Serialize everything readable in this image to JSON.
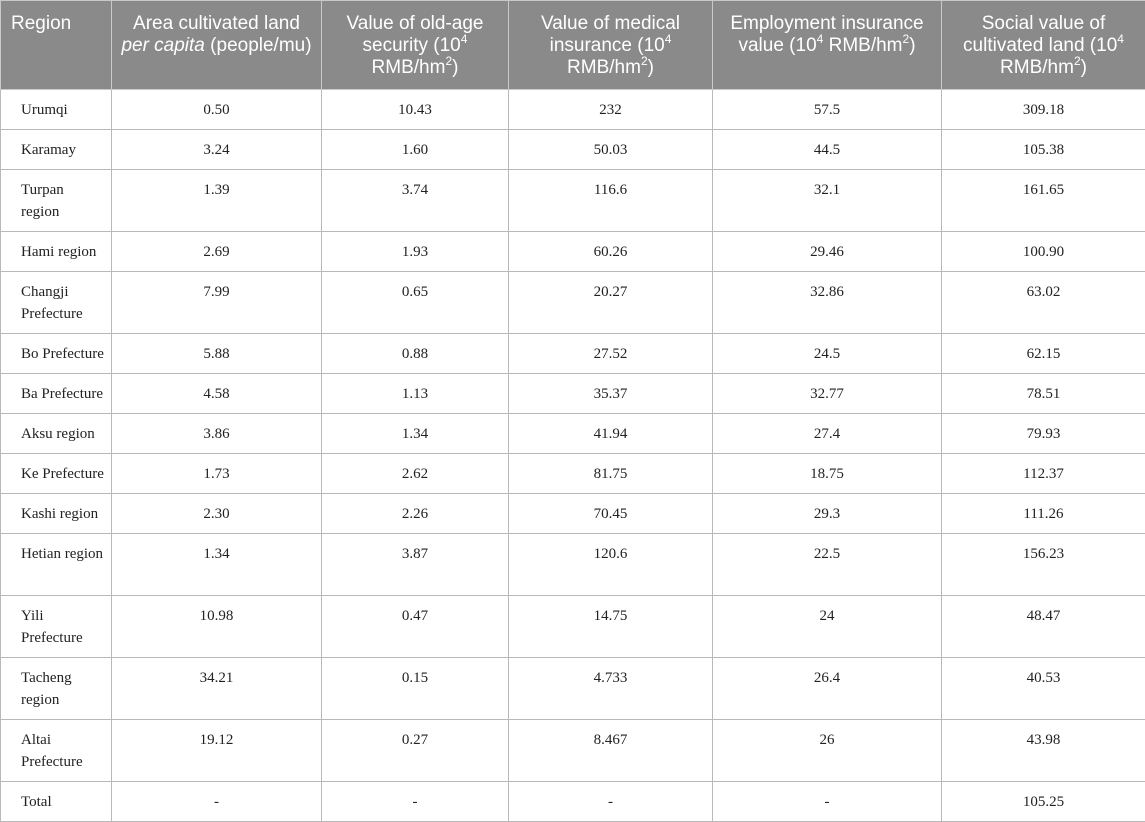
{
  "table": {
    "headers": {
      "region": "Region",
      "area_pre": "Area cultivated land ",
      "area_italic": "per capita",
      "area_post": " (people/mu)",
      "oldage_pre": "Value of old-age security (10",
      "oldage_sup": "4",
      "oldage_mid": " RMB/hm",
      "oldage_sup2": "2",
      "oldage_post": ")",
      "medical_pre": "Value of medical insurance (10",
      "medical_sup": "4",
      "medical_mid": " RMB/hm",
      "medical_sup2": "2",
      "medical_post": ")",
      "employment_pre": "Employment insurance value (10",
      "employment_sup": "4",
      "employment_mid": " RMB/hm",
      "employment_sup2": "2",
      "employment_post": ")",
      "social_pre": "Social value of cultivated land (10",
      "social_sup": "4",
      "social_mid": " RMB/hm",
      "social_sup2": "2",
      "social_post": ")"
    },
    "rows": [
      {
        "region": "Urumqi",
        "area": "0.50",
        "oldage": "10.43",
        "medical": "232",
        "employment": "57.5",
        "social": "309.18"
      },
      {
        "region": "Karamay",
        "area": "3.24",
        "oldage": "1.60",
        "medical": "50.03",
        "employment": "44.5",
        "social": "105.38"
      },
      {
        "region": "Turpan region",
        "area": "1.39",
        "oldage": "3.74",
        "medical": "116.6",
        "employment": "32.1",
        "social": "161.65"
      },
      {
        "region": "Hami region",
        "area": "2.69",
        "oldage": "1.93",
        "medical": "60.26",
        "employment": "29.46",
        "social": "100.90"
      },
      {
        "region": "Changji Prefecture",
        "area": "7.99",
        "oldage": "0.65",
        "medical": "20.27",
        "employment": "32.86",
        "social": "63.02"
      },
      {
        "region": "Bo Prefecture",
        "area": "5.88",
        "oldage": "0.88",
        "medical": "27.52",
        "employment": "24.5",
        "social": "62.15"
      },
      {
        "region": "Ba Prefecture",
        "area": "4.58",
        "oldage": "1.13",
        "medical": "35.37",
        "employment": "32.77",
        "social": "78.51"
      },
      {
        "region": "Aksu region",
        "area": "3.86",
        "oldage": "1.34",
        "medical": "41.94",
        "employment": "27.4",
        "social": "79.93"
      },
      {
        "region": "Ke Prefecture",
        "area": "1.73",
        "oldage": "2.62",
        "medical": "81.75",
        "employment": "18.75",
        "social": "112.37"
      },
      {
        "region": "Kashi region",
        "area": "2.30",
        "oldage": "2.26",
        "medical": "70.45",
        "employment": "29.3",
        "social": "111.26"
      },
      {
        "region": "Hetian region",
        "area": "1.34",
        "oldage": "3.87",
        "medical": "120.6",
        "employment": "22.5",
        "social": "156.23"
      },
      {
        "region": "Yili Prefecture",
        "area": "10.98",
        "oldage": "0.47",
        "medical": "14.75",
        "employment": "24",
        "social": "48.47"
      },
      {
        "region": "Tacheng region",
        "area": "34.21",
        "oldage": "0.15",
        "medical": "4.733",
        "employment": "26.4",
        "social": "40.53"
      },
      {
        "region": "Altai Prefecture",
        "area": "19.12",
        "oldage": "0.27",
        "medical": "8.467",
        "employment": "26",
        "social": "43.98"
      },
      {
        "region": "Total",
        "area": "-",
        "oldage": "-",
        "medical": "-",
        "employment": "-",
        "social": "105.25"
      }
    ]
  }
}
